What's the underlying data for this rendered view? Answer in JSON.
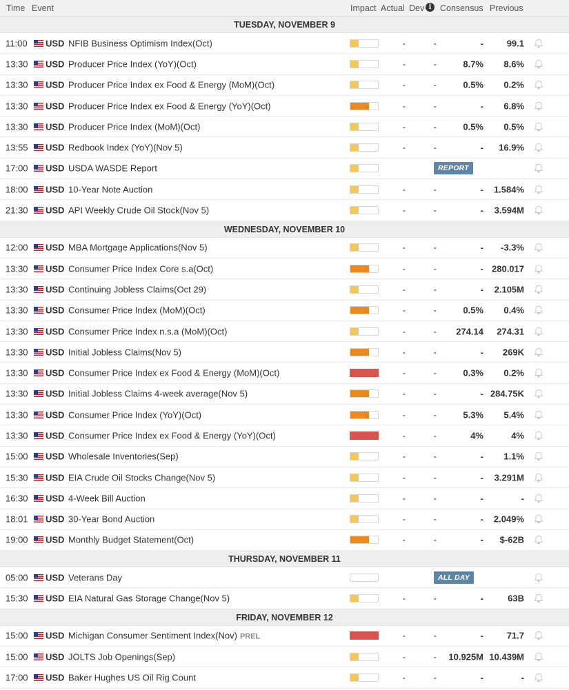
{
  "header": {
    "time": "Time",
    "event": "Event",
    "impact": "Impact",
    "actual": "Actual",
    "dev": "Dev",
    "info": "i",
    "consensus": "Consensus",
    "previous": "Previous"
  },
  "colors": {
    "low": "#f2c75c",
    "medium": "#e98a1e",
    "high": "#d9534f",
    "badge": "#5c86a8"
  },
  "days": [
    {
      "label": "TUESDAY, NOVEMBER 9",
      "events": [
        {
          "time": "11:00",
          "cur": "USD",
          "name": "NFIB Business Optimism Index(Oct)",
          "impact": "low",
          "actual": "-",
          "dev": "-",
          "consensus": "-",
          "previous": "99.1"
        },
        {
          "time": "13:30",
          "cur": "USD",
          "name": "Producer Price Index (YoY)(Oct)",
          "impact": "low",
          "actual": "-",
          "dev": "-",
          "consensus": "8.7%",
          "previous": "8.6%"
        },
        {
          "time": "13:30",
          "cur": "USD",
          "name": "Producer Price Index ex Food & Energy (MoM)(Oct)",
          "impact": "low",
          "actual": "-",
          "dev": "-",
          "consensus": "0.5%",
          "previous": "0.2%"
        },
        {
          "time": "13:30",
          "cur": "USD",
          "name": "Producer Price Index ex Food & Energy (YoY)(Oct)",
          "impact": "medium",
          "actual": "-",
          "dev": "-",
          "consensus": "-",
          "previous": "6.8%"
        },
        {
          "time": "13:30",
          "cur": "USD",
          "name": "Producer Price Index (MoM)(Oct)",
          "impact": "low",
          "actual": "-",
          "dev": "-",
          "consensus": "0.5%",
          "previous": "0.5%"
        },
        {
          "time": "13:55",
          "cur": "USD",
          "name": "Redbook Index (YoY)(Nov 5)",
          "impact": "low",
          "actual": "-",
          "dev": "-",
          "consensus": "-",
          "previous": "16.9%"
        },
        {
          "time": "17:00",
          "cur": "USD",
          "name": "USDA WASDE Report",
          "impact": "low",
          "badge": "REPORT"
        },
        {
          "time": "18:00",
          "cur": "USD",
          "name": "10-Year Note Auction",
          "impact": "low",
          "actual": "-",
          "dev": "-",
          "consensus": "-",
          "previous": "1.584%"
        },
        {
          "time": "21:30",
          "cur": "USD",
          "name": "API Weekly Crude Oil Stock(Nov 5)",
          "impact": "low",
          "actual": "-",
          "dev": "-",
          "consensus": "-",
          "previous": "3.594M"
        }
      ]
    },
    {
      "label": "WEDNESDAY, NOVEMBER 10",
      "events": [
        {
          "time": "12:00",
          "cur": "USD",
          "name": "MBA Mortgage Applications(Nov 5)",
          "impact": "low",
          "actual": "-",
          "dev": "-",
          "consensus": "-",
          "previous": "-3.3%"
        },
        {
          "time": "13:30",
          "cur": "USD",
          "name": "Consumer Price Index Core s.a(Oct)",
          "impact": "medium",
          "actual": "-",
          "dev": "-",
          "consensus": "-",
          "previous": "280.017"
        },
        {
          "time": "13:30",
          "cur": "USD",
          "name": "Continuing Jobless Claims(Oct 29)",
          "impact": "low",
          "actual": "-",
          "dev": "-",
          "consensus": "-",
          "previous": "2.105M"
        },
        {
          "time": "13:30",
          "cur": "USD",
          "name": "Consumer Price Index (MoM)(Oct)",
          "impact": "medium",
          "actual": "-",
          "dev": "-",
          "consensus": "0.5%",
          "previous": "0.4%"
        },
        {
          "time": "13:30",
          "cur": "USD",
          "name": "Consumer Price Index n.s.a (MoM)(Oct)",
          "impact": "low",
          "actual": "-",
          "dev": "-",
          "consensus": "274.14",
          "previous": "274.31"
        },
        {
          "time": "13:30",
          "cur": "USD",
          "name": "Initial Jobless Claims(Nov 5)",
          "impact": "medium",
          "actual": "-",
          "dev": "-",
          "consensus": "-",
          "previous": "269K"
        },
        {
          "time": "13:30",
          "cur": "USD",
          "name": "Consumer Price Index ex Food & Energy (MoM)(Oct)",
          "impact": "high",
          "actual": "-",
          "dev": "-",
          "consensus": "0.3%",
          "previous": "0.2%"
        },
        {
          "time": "13:30",
          "cur": "USD",
          "name": "Initial Jobless Claims 4-week average(Nov 5)",
          "impact": "medium",
          "actual": "-",
          "dev": "-",
          "consensus": "-",
          "previous": "284.75K"
        },
        {
          "time": "13:30",
          "cur": "USD",
          "name": "Consumer Price Index (YoY)(Oct)",
          "impact": "medium",
          "actual": "-",
          "dev": "-",
          "consensus": "5.3%",
          "previous": "5.4%"
        },
        {
          "time": "13:30",
          "cur": "USD",
          "name": "Consumer Price Index ex Food & Energy (YoY)(Oct)",
          "impact": "high",
          "actual": "-",
          "dev": "-",
          "consensus": "4%",
          "previous": "4%"
        },
        {
          "time": "15:00",
          "cur": "USD",
          "name": "Wholesale Inventories(Sep)",
          "impact": "low",
          "actual": "-",
          "dev": "-",
          "consensus": "-",
          "previous": "1.1%"
        },
        {
          "time": "15:30",
          "cur": "USD",
          "name": "EIA Crude Oil Stocks Change(Nov 5)",
          "impact": "low",
          "actual": "-",
          "dev": "-",
          "consensus": "-",
          "previous": "3.291M"
        },
        {
          "time": "16:30",
          "cur": "USD",
          "name": "4-Week Bill Auction",
          "impact": "low",
          "actual": "-",
          "dev": "-",
          "consensus": "-",
          "previous": "-"
        },
        {
          "time": "18:01",
          "cur": "USD",
          "name": "30-Year Bond Auction",
          "impact": "low",
          "actual": "-",
          "dev": "-",
          "consensus": "-",
          "previous": "2.049%"
        },
        {
          "time": "19:00",
          "cur": "USD",
          "name": "Monthly Budget Statement(Oct)",
          "impact": "medium",
          "actual": "-",
          "dev": "-",
          "consensus": "-",
          "previous": "$-62B"
        }
      ]
    },
    {
      "label": "THURSDAY, NOVEMBER 11",
      "events": [
        {
          "time": "05:00",
          "cur": "USD",
          "name": "Veterans Day",
          "impact": "none",
          "badge": "ALL DAY"
        },
        {
          "time": "15:30",
          "cur": "USD",
          "name": "EIA Natural Gas Storage Change(Nov 5)",
          "impact": "low",
          "actual": "-",
          "dev": "-",
          "consensus": "-",
          "previous": "63B"
        }
      ]
    },
    {
      "label": "FRIDAY, NOVEMBER 12",
      "events": [
        {
          "time": "15:00",
          "cur": "USD",
          "name": "Michigan Consumer Sentiment Index(Nov)",
          "tag": "PREL",
          "impact": "high",
          "actual": "-",
          "dev": "-",
          "consensus": "-",
          "previous": "71.7"
        },
        {
          "time": "15:00",
          "cur": "USD",
          "name": "JOLTS Job Openings(Sep)",
          "impact": "low",
          "actual": "-",
          "dev": "-",
          "consensus": "10.925M",
          "previous": "10.439M"
        },
        {
          "time": "17:00",
          "cur": "USD",
          "name": "Baker Hughes US Oil Rig Count",
          "impact": "low",
          "actual": "-",
          "dev": "-",
          "consensus": "-",
          "previous": "-"
        }
      ]
    }
  ]
}
